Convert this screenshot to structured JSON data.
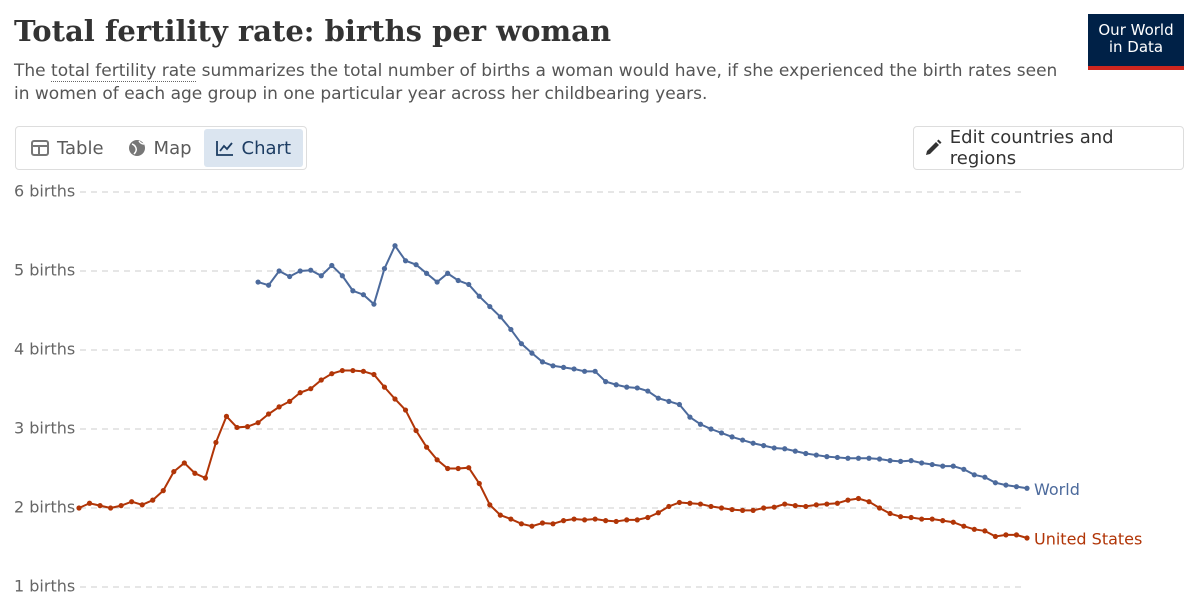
{
  "header": {
    "title": "Total fertility rate: births per woman",
    "subtitle_before": "The ",
    "subtitle_link": "total fertility rate",
    "subtitle_after": " summarizes the total number of births a woman would have, if she experienced the birth rates seen in women of each age group in one particular year across her childbearing years.",
    "logo_line1": "Our World",
    "logo_line2": "in Data"
  },
  "tabs": [
    "Table",
    "Map",
    "Chart"
  ],
  "edit_button": "Edit countries and regions",
  "chart_data": {
    "type": "line",
    "grid": true,
    "ylim": [
      1,
      6
    ],
    "yticks": [
      {
        "value": 1,
        "label": "1 births"
      },
      {
        "value": 2,
        "label": "2 births"
      },
      {
        "value": 3,
        "label": "3 births"
      },
      {
        "value": 4,
        "label": "4 births"
      },
      {
        "value": 5,
        "label": "5 births"
      },
      {
        "value": 6,
        "label": "6 births"
      }
    ],
    "series": [
      {
        "name": "World",
        "color": "#4c6a9c",
        "values": [
          null,
          null,
          null,
          null,
          null,
          null,
          null,
          null,
          null,
          null,
          null,
          null,
          null,
          null,
          null,
          null,
          null,
          4.86,
          4.82,
          5.0,
          4.93,
          5.0,
          5.01,
          4.94,
          5.07,
          4.94,
          4.75,
          4.7,
          4.58,
          5.03,
          5.32,
          5.13,
          5.08,
          4.97,
          4.86,
          4.97,
          4.88,
          4.83,
          4.68,
          4.55,
          4.42,
          4.26,
          4.08,
          3.96,
          3.85,
          3.8,
          3.78,
          3.76,
          3.73,
          3.73,
          3.6,
          3.56,
          3.53,
          3.52,
          3.48,
          3.39,
          3.35,
          3.31,
          3.15,
          3.06,
          3.0,
          2.95,
          2.9,
          2.86,
          2.82,
          2.79,
          2.76,
          2.75,
          2.72,
          2.69,
          2.67,
          2.65,
          2.64,
          2.63,
          2.63,
          2.63,
          2.62,
          2.6,
          2.59,
          2.6,
          2.57,
          2.55,
          2.53,
          2.53,
          2.49,
          2.42,
          2.39,
          2.32,
          2.29,
          2.27,
          2.25
        ]
      },
      {
        "name": "United States",
        "color": "#b13507",
        "values": [
          2.0,
          2.06,
          2.03,
          2.0,
          2.03,
          2.08,
          2.04,
          2.1,
          2.22,
          2.46,
          2.57,
          2.44,
          2.38,
          2.83,
          3.16,
          3.02,
          3.03,
          3.08,
          3.19,
          3.28,
          3.35,
          3.46,
          3.51,
          3.62,
          3.7,
          3.74,
          3.74,
          3.73,
          3.69,
          3.53,
          3.38,
          3.24,
          2.98,
          2.77,
          2.61,
          2.5,
          2.5,
          2.51,
          2.31,
          2.04,
          1.91,
          1.86,
          1.8,
          1.77,
          1.81,
          1.8,
          1.84,
          1.86,
          1.85,
          1.86,
          1.84,
          1.83,
          1.85,
          1.85,
          1.88,
          1.94,
          2.02,
          2.07,
          2.06,
          2.05,
          2.02,
          2.0,
          1.98,
          1.97,
          1.97,
          2.0,
          2.01,
          2.05,
          2.03,
          2.02,
          2.04,
          2.05,
          2.06,
          2.1,
          2.12,
          2.08,
          2.0,
          1.93,
          1.89,
          1.88,
          1.86,
          1.86,
          1.84,
          1.82,
          1.77,
          1.73,
          1.71,
          1.64,
          1.66,
          1.66,
          1.62
        ]
      }
    ]
  }
}
